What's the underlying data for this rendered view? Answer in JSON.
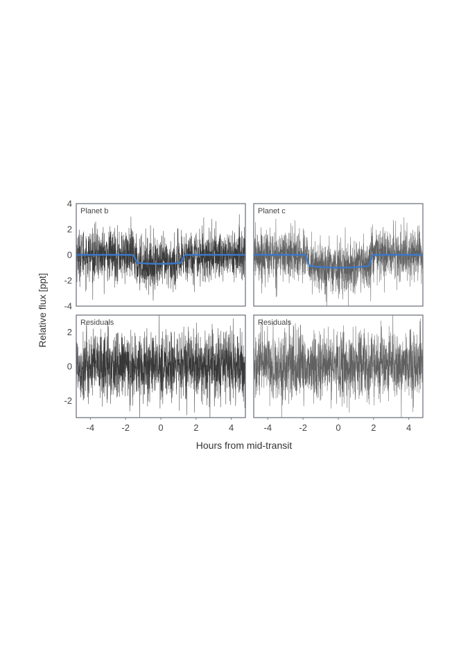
{
  "figure": {
    "xlabel": "Hours from mid-transit",
    "ylabel": "Relative flux [ppt]"
  },
  "chart_data": [
    {
      "type": "line",
      "panel": "top-left",
      "label": "Planet b",
      "xlim": [
        -4.8,
        4.8
      ],
      "ylim": [
        -4,
        4
      ],
      "yticks": [
        4,
        2,
        0,
        -2,
        -4
      ],
      "xticks": [],
      "data_style": "dense noisy light curve (scatter about 1 ppt)",
      "model": {
        "name": "transit model",
        "color": "#3b78c9",
        "depth_ppt": -0.7,
        "ingress_hours": -1.6,
        "egress_hours": 1.4
      }
    },
    {
      "type": "line",
      "panel": "top-right",
      "label": "Planet c",
      "xlim": [
        -4.8,
        4.8
      ],
      "ylim": [
        -4,
        4
      ],
      "yticks": [],
      "xticks": [],
      "data_style": "dense noisy light curve (scatter about 1 ppt)",
      "model": {
        "name": "transit model",
        "color": "#3b78c9",
        "depth_ppt": -1.0,
        "ingress_hours": -1.9,
        "egress_hours": 2.0
      }
    },
    {
      "type": "line",
      "panel": "bottom-left",
      "label": "Residuals",
      "xlim": [
        -4.8,
        4.8
      ],
      "ylim": [
        -3,
        3
      ],
      "yticks": [
        2,
        0,
        -2
      ],
      "xticks": [
        -4,
        -2,
        0,
        2,
        4
      ],
      "data_style": "dense noisy residuals (scatter about 1 ppt)"
    },
    {
      "type": "line",
      "panel": "bottom-right",
      "label": "Residuals",
      "xlim": [
        -4.8,
        4.8
      ],
      "ylim": [
        -3,
        3
      ],
      "yticks": [],
      "xticks": [
        -4,
        -2,
        0,
        2,
        4
      ],
      "data_style": "dense noisy residuals (scatter about 1 ppt)"
    }
  ],
  "colors": {
    "data_dark": "#222222",
    "data_light": "#444444",
    "frame": "#6f7580",
    "model": "#3b78c9"
  }
}
